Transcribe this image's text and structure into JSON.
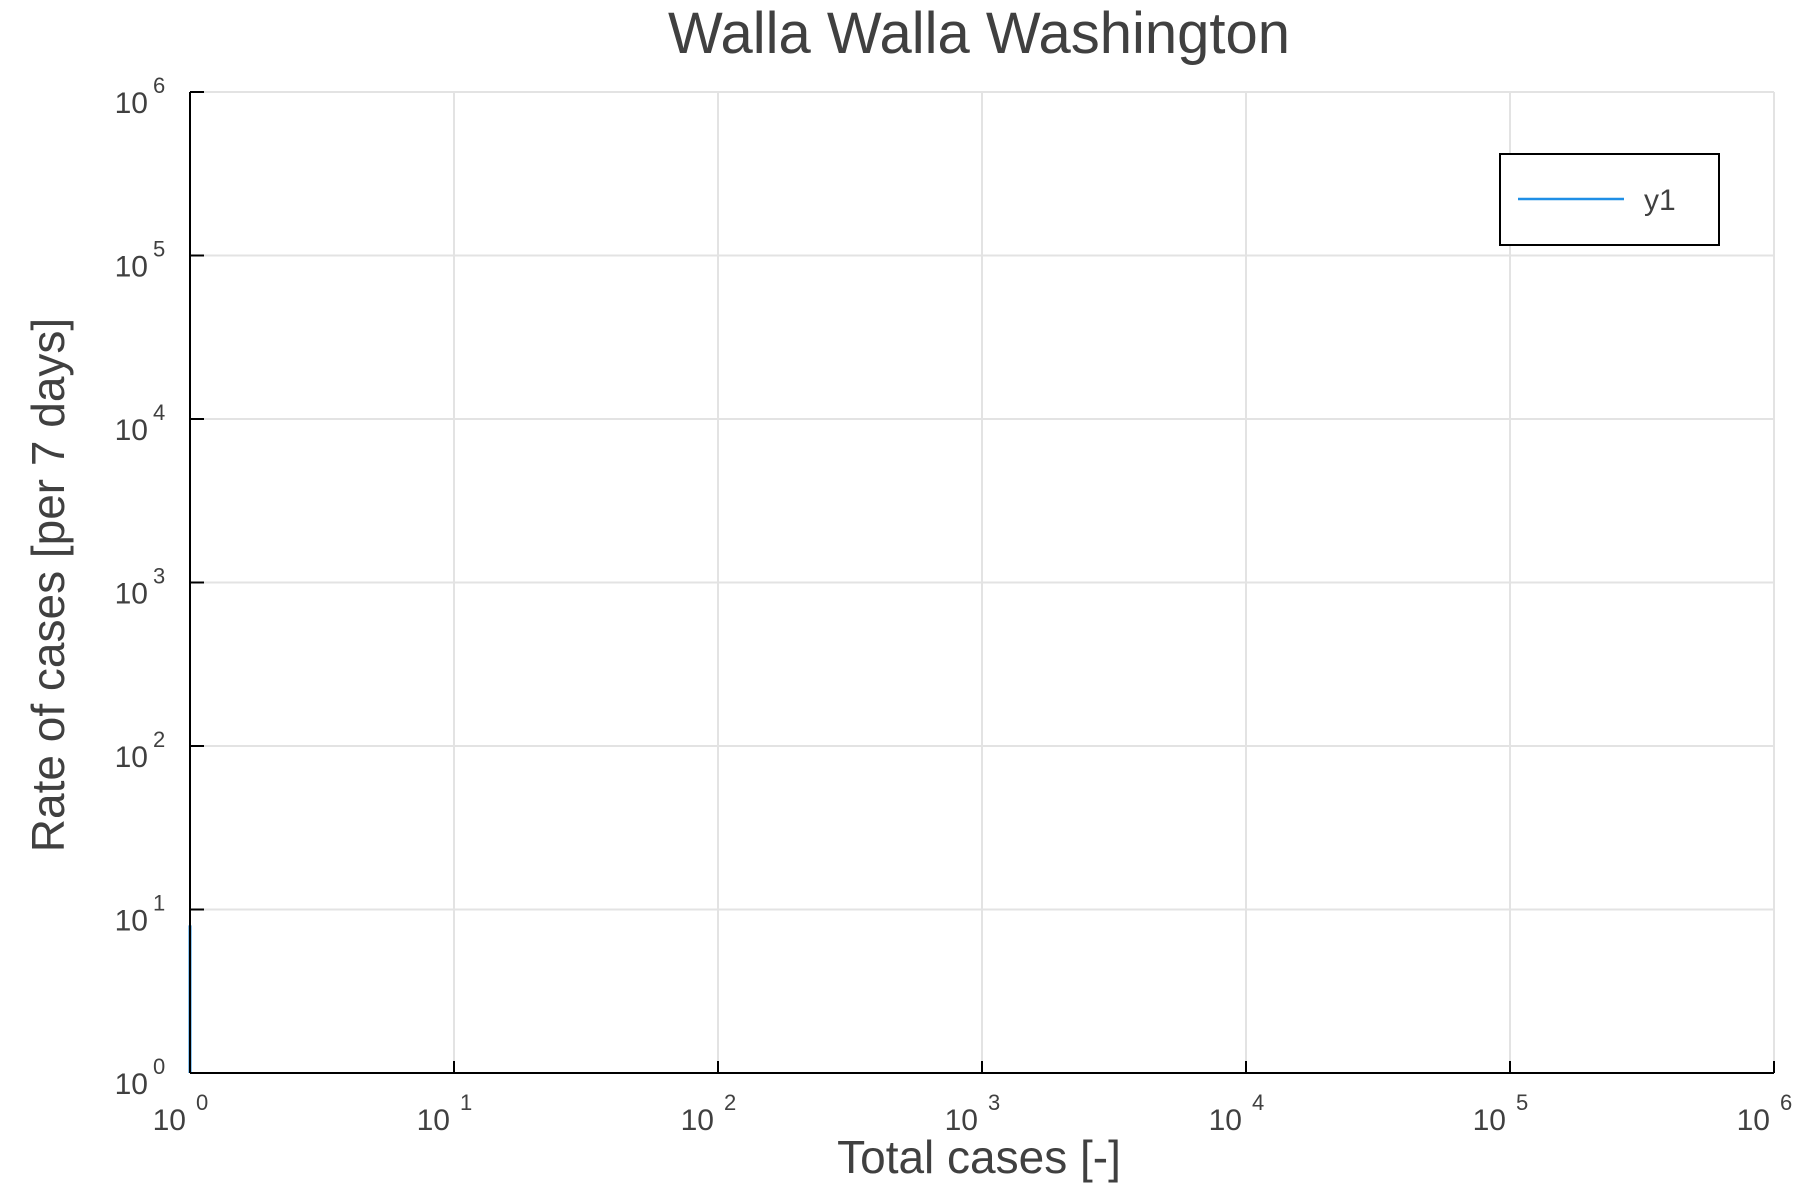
{
  "chart_data": {
    "type": "line",
    "title": "Walla Walla Washington",
    "xlabel": "Total cases [-]",
    "ylabel": "Rate of cases [per 7 days]",
    "xscale": "log",
    "yscale": "log",
    "xlim": [
      1,
      1000000
    ],
    "ylim": [
      1,
      1000000
    ],
    "x_ticks": [
      {
        "base": "10",
        "exp": "0"
      },
      {
        "base": "10",
        "exp": "1"
      },
      {
        "base": "10",
        "exp": "2"
      },
      {
        "base": "10",
        "exp": "3"
      },
      {
        "base": "10",
        "exp": "4"
      },
      {
        "base": "10",
        "exp": "5"
      },
      {
        "base": "10",
        "exp": "6"
      }
    ],
    "y_ticks": [
      {
        "base": "10",
        "exp": "0"
      },
      {
        "base": "10",
        "exp": "1"
      },
      {
        "base": "10",
        "exp": "2"
      },
      {
        "base": "10",
        "exp": "3"
      },
      {
        "base": "10",
        "exp": "4"
      },
      {
        "base": "10",
        "exp": "5"
      },
      {
        "base": "10",
        "exp": "6"
      }
    ],
    "grid": true,
    "legend_position": "top-right",
    "series": [
      {
        "name": "y1",
        "color": "#1f8fe6",
        "x": [
          1,
          1
        ],
        "y": [
          1,
          8
        ]
      }
    ]
  }
}
